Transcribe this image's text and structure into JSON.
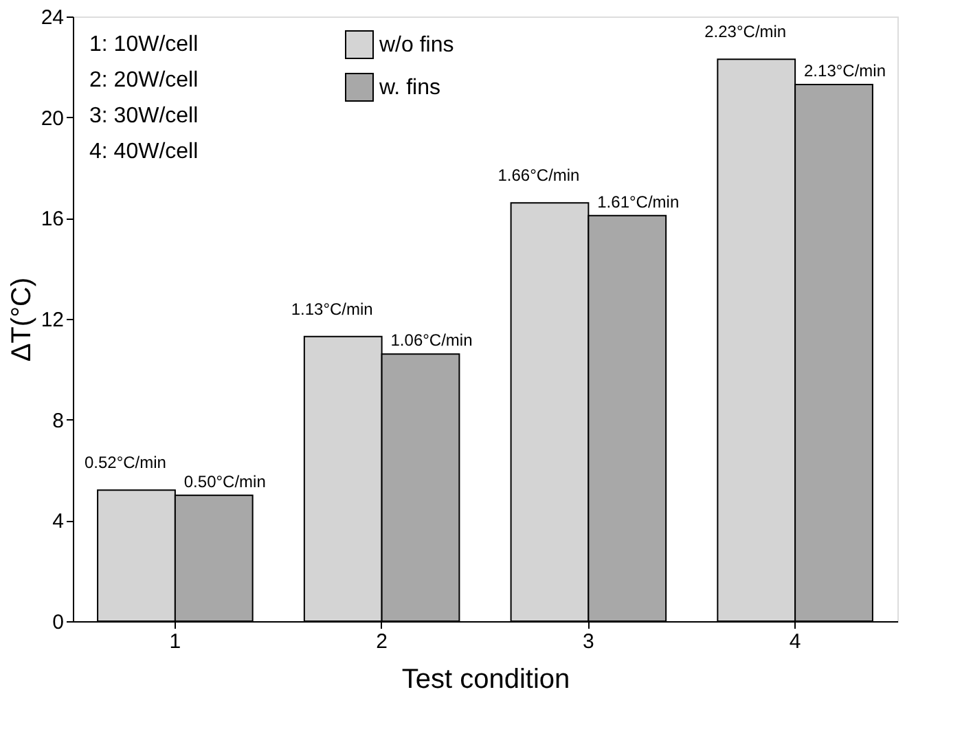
{
  "chart_data": {
    "type": "bar",
    "categories": [
      "1",
      "2",
      "3",
      "4"
    ],
    "xlabel": "Test condition",
    "ylabel": "ΔT(°C)",
    "series": [
      {
        "name": "w/o fins",
        "color": "#d4d4d4",
        "values": [
          5.2,
          11.3,
          16.6,
          22.3
        ]
      },
      {
        "name": "w. fins",
        "color": "#a8a8a8",
        "values": [
          5.0,
          10.6,
          16.1,
          21.3
        ]
      }
    ],
    "ylim": [
      0,
      24
    ],
    "yticks": [
      0,
      4,
      8,
      12,
      16,
      20,
      24
    ],
    "annotations": [
      "1: 10W/cell",
      "2: 20W/cell",
      "3: 30W/cell",
      "4: 40W/cell",
      {
        "text": "0.52°C/min",
        "x": "1",
        "y": 5.2
      },
      {
        "text": "0.50°C/min",
        "x": "1",
        "y": 5.0
      },
      {
        "text": "1.13°C/min",
        "x": "2",
        "y": 11.3
      },
      {
        "text": "1.06°C/min",
        "x": "2",
        "y": 10.6
      },
      {
        "text": "1.66°C/min",
        "x": "3",
        "y": 16.6
      },
      {
        "text": "1.61°C/min",
        "x": "3",
        "y": 16.1
      },
      {
        "text": "2.23°C/min",
        "x": "4",
        "y": 22.3
      },
      {
        "text": "2.13°C/min",
        "x": "4",
        "y": 21.3
      }
    ],
    "legend": "top",
    "grid": false
  }
}
